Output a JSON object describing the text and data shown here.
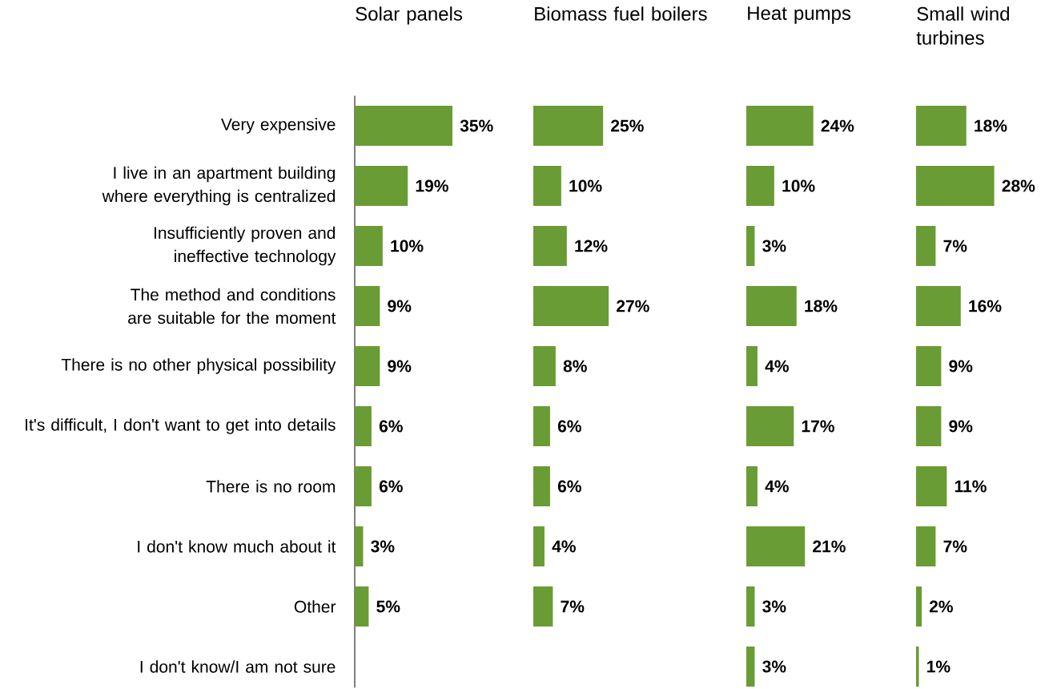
{
  "chart_data": [
    {
      "type": "bar",
      "orientation": "horizontal",
      "title": "Solar panels",
      "tick_labels": "y",
      "color": "#699c34",
      "categories": [
        "Very expensive",
        "I live in an apartment building where everything is centralized",
        "Insufficiently proven and ineffective technology",
        "The method and conditions are suitable for the moment",
        "There is no other physical possibility",
        "It's difficult, I don't want to get into details",
        "There is no room",
        "I don't know much about it",
        "Other",
        "I don't know/I am not sure"
      ],
      "values": [
        35,
        19,
        10,
        9,
        9,
        6,
        6,
        3,
        5,
        null
      ],
      "value_labels": [
        "35%",
        "19%",
        "10%",
        "9%",
        "9%",
        "6%",
        "6%",
        "3%",
        "5%",
        null
      ]
    },
    {
      "type": "bar",
      "orientation": "horizontal",
      "title": "Biomass fuel boilers",
      "tick_labels": false,
      "color": "#699c34",
      "categories": [
        null,
        null,
        null,
        null,
        null,
        null,
        null,
        null,
        null,
        null
      ],
      "values": [
        25,
        10,
        12,
        27,
        8,
        6,
        6,
        4,
        7,
        null
      ],
      "value_labels": [
        "25%",
        "10%",
        "12%",
        "27%",
        "8%",
        "6%",
        "6%",
        "4%",
        "7%",
        null
      ]
    },
    {
      "type": "bar",
      "orientation": "horizontal",
      "title": "Heat pumps",
      "tick_labels": false,
      "color": "#699c34",
      "categories": [
        null,
        null,
        null,
        null,
        null,
        null,
        null,
        null,
        null,
        null
      ],
      "values": [
        24,
        10,
        3,
        18,
        4,
        17,
        4,
        21,
        3,
        3
      ],
      "value_labels": [
        "24%",
        "10%",
        "3%",
        "18%",
        "4%",
        "17%",
        "4%",
        "21%",
        "3%",
        "3%"
      ]
    },
    {
      "type": "bar",
      "orientation": "horizontal",
      "title": "Small wind turbines",
      "tick_labels": false,
      "color": "#699c34",
      "categories": [
        null,
        null,
        null,
        null,
        null,
        null,
        null,
        null,
        null,
        null
      ],
      "values": [
        18,
        28,
        7,
        16,
        9,
        9,
        11,
        7,
        2,
        1
      ],
      "value_labels": [
        "18%",
        "28%",
        "7%",
        "16%",
        "9%",
        "9%",
        "11%",
        "7%",
        "2%",
        "1%"
      ]
    }
  ]
}
